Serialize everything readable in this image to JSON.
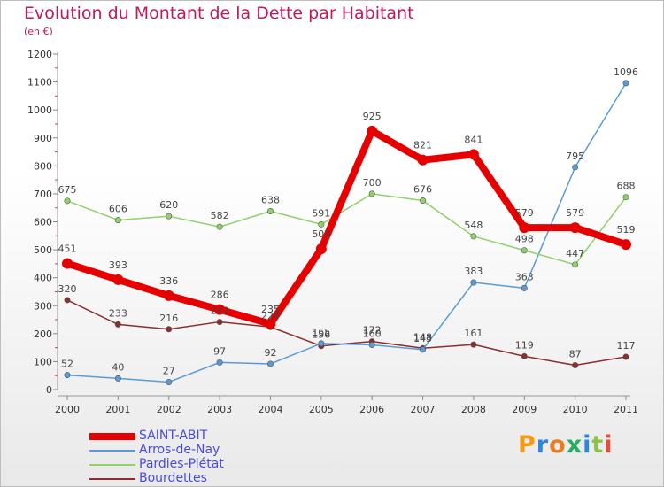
{
  "title": "Evolution du Montant de la Dette par Habitant",
  "subtitle": "(en €)",
  "brand": {
    "text": "Proxiti",
    "colors": [
      "#f39c12",
      "#2e86de",
      "#e67e22",
      "#27ae60",
      "#2e86de",
      "#8bc34a",
      "#e74c3c"
    ]
  },
  "chart_data": {
    "type": "line",
    "x": [
      2000,
      2001,
      2002,
      2003,
      2004,
      2005,
      2006,
      2007,
      2008,
      2009,
      2010,
      2011
    ],
    "ylim": [
      0,
      1200
    ],
    "yticks": [
      0,
      100,
      200,
      300,
      400,
      500,
      600,
      700,
      800,
      900,
      1000,
      1100,
      1200
    ],
    "legend_position": "bottom-left",
    "series": [
      {
        "name": "Bourdettes",
        "color": "#8b2e2e",
        "values": [
          320,
          233,
          216,
          242,
          224,
          156,
          172,
          148,
          161,
          119,
          87,
          117
        ],
        "labels": [
          "320",
          "233",
          "216",
          "242",
          "224",
          "156",
          "172",
          "148",
          "161",
          "119",
          "87",
          "117"
        ]
      },
      {
        "name": "Arros-de-Nay",
        "color": "#5b9bd5",
        "values": [
          52,
          40,
          27,
          97,
          92,
          165,
          160,
          143,
          383,
          363,
          795,
          1096
        ],
        "labels": [
          "52",
          "40",
          "27",
          "97",
          "92",
          "165",
          "160",
          "143",
          "383",
          "363",
          "795",
          "1096"
        ]
      },
      {
        "name": "Pardies-Piétat",
        "color": "#8fd16a",
        "values": [
          675,
          606,
          620,
          582,
          638,
          591,
          700,
          676,
          548,
          498,
          447,
          688
        ],
        "labels": [
          "675",
          "606",
          "620",
          "582",
          "638",
          "591",
          "700",
          "676",
          "548",
          "498",
          "447",
          "688"
        ]
      },
      {
        "name": "SAINT-ABIT",
        "color": "#e60000",
        "values": [
          451,
          393,
          336,
          286,
          235,
          503,
          925,
          821,
          841,
          579,
          579,
          519
        ],
        "labels": [
          "451",
          "393",
          "336",
          "286",
          "235",
          "503",
          "925",
          "821",
          "841",
          "579",
          "579",
          "519"
        ]
      }
    ],
    "legend_order": [
      "SAINT-ABIT",
      "Arros-de-Nay",
      "Pardies-Piétat",
      "Bourdettes"
    ]
  }
}
